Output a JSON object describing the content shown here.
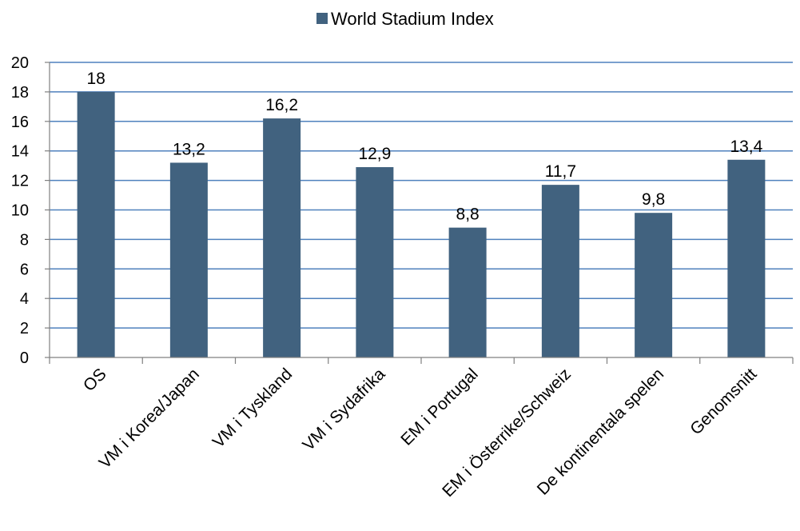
{
  "chart_data": {
    "type": "bar",
    "categories": [
      "OS",
      "VM i Korea/Japan",
      "VM i Tyskland",
      "VM i Sydafrika",
      "EM i Portugal",
      "EM i Österrike/Schweiz",
      "De kontinentala spelen",
      "Genomsnitt"
    ],
    "series": [
      {
        "name": "World Stadium Index",
        "values": [
          18,
          13.2,
          16.2,
          12.9,
          8.8,
          11.7,
          9.8,
          13.4
        ],
        "data_labels": [
          "18",
          "13,2",
          "16,2",
          "12,9",
          "8,8",
          "11,7",
          "9,8",
          "13,4"
        ]
      }
    ],
    "ylim": [
      0,
      20
    ],
    "yticks": [
      0,
      2,
      4,
      6,
      8,
      10,
      12,
      14,
      16,
      18,
      20
    ],
    "grid": true,
    "legend": "top-center",
    "xlabel": "",
    "ylabel": "",
    "title": "",
    "colors": {
      "bar": "#41627f",
      "gridline": "#4f81bd",
      "axis": "#808080"
    }
  }
}
